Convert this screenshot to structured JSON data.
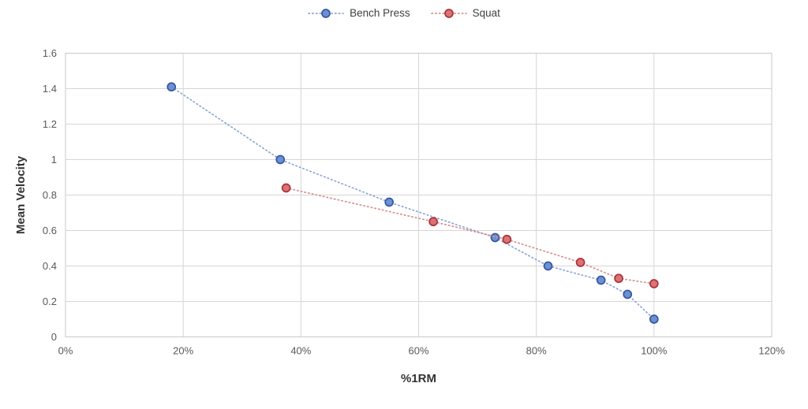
{
  "chart_data": {
    "type": "line",
    "title": "",
    "xlabel": "%1RM",
    "ylabel": "Mean Velocity",
    "xlim": [
      0,
      120
    ],
    "ylim": [
      0,
      1.6
    ],
    "grid": true,
    "legend_position": "top-center",
    "colors": {
      "background": "#FFFFFF",
      "grid": "#D6D6D6",
      "border": "#C9C9C9",
      "tick_text": "#595959",
      "axis_title_text": "#333333",
      "legend_text": "#404040"
    },
    "x_ticks": [
      {
        "value": 0,
        "label": "0%"
      },
      {
        "value": 20,
        "label": "20%"
      },
      {
        "value": 40,
        "label": "40%"
      },
      {
        "value": 60,
        "label": "60%"
      },
      {
        "value": 80,
        "label": "80%"
      },
      {
        "value": 100,
        "label": "100%"
      },
      {
        "value": 120,
        "label": "120%"
      }
    ],
    "y_ticks": [
      {
        "value": 0,
        "label": "0"
      },
      {
        "value": 0.2,
        "label": "0.2"
      },
      {
        "value": 0.4,
        "label": "0.4"
      },
      {
        "value": 0.6,
        "label": "0.6"
      },
      {
        "value": 0.8,
        "label": "0.8"
      },
      {
        "value": 1,
        "label": "1"
      },
      {
        "value": 1.2,
        "label": "1.2"
      },
      {
        "value": 1.4,
        "label": "1.4"
      },
      {
        "value": 1.6,
        "label": "1.6"
      }
    ],
    "series": [
      {
        "name": "Bench Press",
        "line_style": "dotted",
        "marker": "circle",
        "line_color": "#8AA5D8",
        "marker_fill": "#6E90D0",
        "marker_stroke": "#3458A4",
        "points": [
          {
            "x": 18,
            "y": 1.41
          },
          {
            "x": 36.5,
            "y": 1.0
          },
          {
            "x": 55,
            "y": 0.76
          },
          {
            "x": 73,
            "y": 0.56
          },
          {
            "x": 82,
            "y": 0.4
          },
          {
            "x": 91,
            "y": 0.32
          },
          {
            "x": 95.5,
            "y": 0.24
          },
          {
            "x": 100,
            "y": 0.1
          }
        ]
      },
      {
        "name": "Squat",
        "line_style": "dotted",
        "marker": "circle",
        "line_color": "#D98F90",
        "marker_fill": "#DB7275",
        "marker_stroke": "#AC3338",
        "points": [
          {
            "x": 37.5,
            "y": 0.84
          },
          {
            "x": 62.5,
            "y": 0.65
          },
          {
            "x": 75,
            "y": 0.55
          },
          {
            "x": 87.5,
            "y": 0.42
          },
          {
            "x": 94,
            "y": 0.33
          },
          {
            "x": 100,
            "y": 0.3
          }
        ]
      }
    ]
  }
}
